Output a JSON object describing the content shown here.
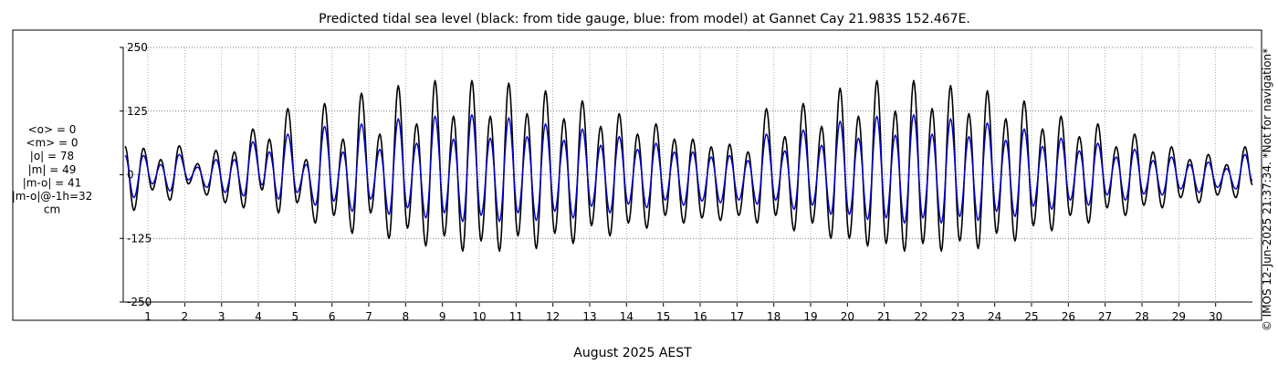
{
  "chart_data": {
    "type": "line",
    "title": "Predicted tidal sea level (black: from tide gauge, blue: from model) at Gannet Cay 21.983S 152.467E.",
    "xlabel": "August 2025 AEST",
    "ylabel": "",
    "unit": "cm",
    "ylim": [
      -250,
      250
    ],
    "yticks": [
      250,
      125,
      0,
      -125,
      -250
    ],
    "yticklabels": [
      "250",
      "125",
      "0",
      "-125",
      "-250"
    ],
    "xlim": [
      0.33,
      31
    ],
    "xticks": [
      1,
      2,
      3,
      4,
      5,
      6,
      7,
      8,
      9,
      10,
      11,
      12,
      13,
      14,
      15,
      16,
      17,
      18,
      19,
      20,
      21,
      22,
      23,
      24,
      25,
      26,
      27,
      28,
      29,
      30
    ],
    "xticklabels": [
      "1",
      "2",
      "3",
      "4",
      "5",
      "6",
      "7",
      "8",
      "9",
      "10",
      "11",
      "12",
      "13",
      "14",
      "15",
      "16",
      "17",
      "18",
      "19",
      "20",
      "21",
      "22",
      "23",
      "24",
      "25",
      "26",
      "27",
      "28",
      "29",
      "30"
    ],
    "grid": true,
    "stats": [
      "<o> = 0",
      "<m> = 0",
      "|o| = 78",
      "|m| = 49",
      "|m-o| = 41",
      "|m-o|@-1h=32",
      "cm"
    ],
    "credit": "© IMOS 12-Jun-2025 21:37:34. *Not for navigation*",
    "series": [
      {
        "color": "#000000",
        "extrema": [
          [
            0.38,
            56
          ],
          [
            0.62,
            -70
          ],
          [
            0.88,
            52
          ],
          [
            1.12,
            -30
          ],
          [
            1.35,
            30
          ],
          [
            1.6,
            -50
          ],
          [
            1.85,
            57
          ],
          [
            2.1,
            -18
          ],
          [
            2.35,
            22
          ],
          [
            2.6,
            -40
          ],
          [
            2.85,
            48
          ],
          [
            3.1,
            -55
          ],
          [
            3.35,
            45
          ],
          [
            3.6,
            -65
          ],
          [
            3.85,
            90
          ],
          [
            4.1,
            -30
          ],
          [
            4.3,
            70
          ],
          [
            4.55,
            -75
          ],
          [
            4.8,
            130
          ],
          [
            5.05,
            -55
          ],
          [
            5.3,
            30
          ],
          [
            5.55,
            -95
          ],
          [
            5.8,
            140
          ],
          [
            6.05,
            -80
          ],
          [
            6.3,
            70
          ],
          [
            6.55,
            -115
          ],
          [
            6.8,
            160
          ],
          [
            7.05,
            -75
          ],
          [
            7.3,
            80
          ],
          [
            7.55,
            -125
          ],
          [
            7.8,
            175
          ],
          [
            8.05,
            -105
          ],
          [
            8.3,
            100
          ],
          [
            8.55,
            -140
          ],
          [
            8.8,
            185
          ],
          [
            9.05,
            -120
          ],
          [
            9.3,
            115
          ],
          [
            9.55,
            -150
          ],
          [
            9.8,
            185
          ],
          [
            10.05,
            -130
          ],
          [
            10.3,
            115
          ],
          [
            10.55,
            -150
          ],
          [
            10.8,
            180
          ],
          [
            11.05,
            -120
          ],
          [
            11.3,
            120
          ],
          [
            11.55,
            -145
          ],
          [
            11.8,
            165
          ],
          [
            12.05,
            -115
          ],
          [
            12.3,
            110
          ],
          [
            12.55,
            -135
          ],
          [
            12.8,
            145
          ],
          [
            13.05,
            -100
          ],
          [
            13.3,
            95
          ],
          [
            13.55,
            -120
          ],
          [
            13.8,
            120
          ],
          [
            14.05,
            -95
          ],
          [
            14.3,
            80
          ],
          [
            14.55,
            -105
          ],
          [
            14.8,
            100
          ],
          [
            15.05,
            -80
          ],
          [
            15.3,
            70
          ],
          [
            15.55,
            -95
          ],
          [
            15.8,
            70
          ],
          [
            16.05,
            -85
          ],
          [
            16.3,
            55
          ],
          [
            16.55,
            -90
          ],
          [
            16.8,
            60
          ],
          [
            17.05,
            -80
          ],
          [
            17.3,
            45
          ],
          [
            17.55,
            -95
          ],
          [
            17.8,
            130
          ],
          [
            18.05,
            -80
          ],
          [
            18.3,
            75
          ],
          [
            18.55,
            -110
          ],
          [
            18.8,
            140
          ],
          [
            19.05,
            -95
          ],
          [
            19.3,
            95
          ],
          [
            19.55,
            -125
          ],
          [
            19.8,
            170
          ],
          [
            20.05,
            -125
          ],
          [
            20.3,
            115
          ],
          [
            20.55,
            -140
          ],
          [
            20.8,
            185
          ],
          [
            21.05,
            -135
          ],
          [
            21.3,
            125
          ],
          [
            21.55,
            -150
          ],
          [
            21.8,
            185
          ],
          [
            22.05,
            -135
          ],
          [
            22.3,
            130
          ],
          [
            22.55,
            -150
          ],
          [
            22.8,
            175
          ],
          [
            23.05,
            -130
          ],
          [
            23.3,
            120
          ],
          [
            23.55,
            -145
          ],
          [
            23.8,
            165
          ],
          [
            24.05,
            -115
          ],
          [
            24.3,
            110
          ],
          [
            24.55,
            -130
          ],
          [
            24.8,
            145
          ],
          [
            25.05,
            -100
          ],
          [
            25.3,
            90
          ],
          [
            25.55,
            -110
          ],
          [
            25.8,
            115
          ],
          [
            26.05,
            -80
          ],
          [
            26.3,
            75
          ],
          [
            26.55,
            -95
          ],
          [
            26.8,
            100
          ],
          [
            27.05,
            -65
          ],
          [
            27.3,
            55
          ],
          [
            27.55,
            -80
          ],
          [
            27.8,
            80
          ],
          [
            28.05,
            -60
          ],
          [
            28.3,
            45
          ],
          [
            28.55,
            -65
          ],
          [
            28.8,
            55
          ],
          [
            29.05,
            -45
          ],
          [
            29.3,
            30
          ],
          [
            29.55,
            -55
          ],
          [
            29.8,
            40
          ],
          [
            30.05,
            -40
          ],
          [
            30.3,
            20
          ],
          [
            30.55,
            -45
          ],
          [
            30.8,
            55
          ],
          [
            31,
            -20
          ]
        ]
      },
      {
        "color": "#0000cc",
        "extrema": [
          [
            0.38,
            38
          ],
          [
            0.62,
            -45
          ],
          [
            0.88,
            38
          ],
          [
            1.12,
            -18
          ],
          [
            1.35,
            20
          ],
          [
            1.6,
            -32
          ],
          [
            1.85,
            40
          ],
          [
            2.1,
            -10
          ],
          [
            2.35,
            15
          ],
          [
            2.6,
            -25
          ],
          [
            2.85,
            30
          ],
          [
            3.1,
            -35
          ],
          [
            3.35,
            30
          ],
          [
            3.6,
            -42
          ],
          [
            3.85,
            65
          ],
          [
            4.1,
            -20
          ],
          [
            4.3,
            45
          ],
          [
            4.55,
            -48
          ],
          [
            4.8,
            80
          ],
          [
            5.05,
            -35
          ],
          [
            5.3,
            20
          ],
          [
            5.55,
            -60
          ],
          [
            5.8,
            95
          ],
          [
            6.05,
            -52
          ],
          [
            6.3,
            45
          ],
          [
            6.55,
            -72
          ],
          [
            6.8,
            100
          ],
          [
            7.05,
            -48
          ],
          [
            7.3,
            50
          ],
          [
            7.55,
            -78
          ],
          [
            7.8,
            110
          ],
          [
            8.05,
            -65
          ],
          [
            8.3,
            62
          ],
          [
            8.55,
            -85
          ],
          [
            8.8,
            115
          ],
          [
            9.05,
            -75
          ],
          [
            9.3,
            70
          ],
          [
            9.55,
            -92
          ],
          [
            9.8,
            118
          ],
          [
            10.05,
            -80
          ],
          [
            10.3,
            72
          ],
          [
            10.55,
            -92
          ],
          [
            10.8,
            112
          ],
          [
            11.05,
            -75
          ],
          [
            11.3,
            75
          ],
          [
            11.55,
            -90
          ],
          [
            11.8,
            100
          ],
          [
            12.05,
            -72
          ],
          [
            12.3,
            68
          ],
          [
            12.55,
            -85
          ],
          [
            12.8,
            90
          ],
          [
            13.05,
            -62
          ],
          [
            13.3,
            58
          ],
          [
            13.55,
            -75
          ],
          [
            13.8,
            75
          ],
          [
            14.05,
            -58
          ],
          [
            14.3,
            50
          ],
          [
            14.55,
            -65
          ],
          [
            14.8,
            62
          ],
          [
            15.05,
            -50
          ],
          [
            15.3,
            45
          ],
          [
            15.55,
            -60
          ],
          [
            15.8,
            45
          ],
          [
            16.05,
            -52
          ],
          [
            16.3,
            35
          ],
          [
            16.55,
            -55
          ],
          [
            16.8,
            38
          ],
          [
            17.05,
            -50
          ],
          [
            17.3,
            28
          ],
          [
            17.55,
            -58
          ],
          [
            17.8,
            80
          ],
          [
            18.05,
            -50
          ],
          [
            18.3,
            47
          ],
          [
            18.55,
            -68
          ],
          [
            18.8,
            88
          ],
          [
            19.05,
            -60
          ],
          [
            19.3,
            58
          ],
          [
            19.55,
            -78
          ],
          [
            19.8,
            105
          ],
          [
            20.05,
            -78
          ],
          [
            20.3,
            72
          ],
          [
            20.55,
            -88
          ],
          [
            20.8,
            115
          ],
          [
            21.05,
            -85
          ],
          [
            21.3,
            78
          ],
          [
            21.55,
            -95
          ],
          [
            21.8,
            118
          ],
          [
            22.05,
            -85
          ],
          [
            22.3,
            80
          ],
          [
            22.55,
            -95
          ],
          [
            22.8,
            110
          ],
          [
            23.05,
            -82
          ],
          [
            23.3,
            75
          ],
          [
            23.55,
            -90
          ],
          [
            23.8,
            102
          ],
          [
            24.05,
            -72
          ],
          [
            24.3,
            68
          ],
          [
            24.55,
            -82
          ],
          [
            24.8,
            90
          ],
          [
            25.05,
            -62
          ],
          [
            25.3,
            56
          ],
          [
            25.55,
            -68
          ],
          [
            25.8,
            72
          ],
          [
            26.05,
            -50
          ],
          [
            26.3,
            47
          ],
          [
            26.55,
            -60
          ],
          [
            26.8,
            62
          ],
          [
            27.05,
            -40
          ],
          [
            27.3,
            35
          ],
          [
            27.55,
            -50
          ],
          [
            27.8,
            50
          ],
          [
            28.05,
            -38
          ],
          [
            28.3,
            28
          ],
          [
            28.55,
            -40
          ],
          [
            28.8,
            35
          ],
          [
            29.05,
            -28
          ],
          [
            29.3,
            20
          ],
          [
            29.55,
            -35
          ],
          [
            29.8,
            25
          ],
          [
            30.05,
            -25
          ],
          [
            30.3,
            12
          ],
          [
            30.55,
            -28
          ],
          [
            30.8,
            40
          ],
          [
            31,
            -12
          ]
        ]
      }
    ]
  }
}
